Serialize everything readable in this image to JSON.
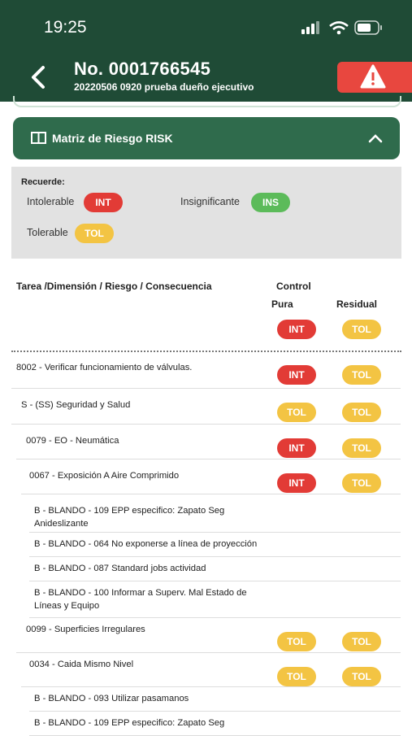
{
  "status_bar": {
    "time": "19:25"
  },
  "header": {
    "title": "No. 0001766545",
    "subtitle": "20220506 0920 prueba dueño ejecutivo"
  },
  "section": {
    "title": "Matriz de Riesgo RISK"
  },
  "legend": {
    "heading": "Recuerde:",
    "items": [
      {
        "label": "Intolerable",
        "badge": "INT",
        "color": "#e23b36"
      },
      {
        "label": "Insignificante",
        "badge": "INS",
        "color": "#5cbb5a"
      },
      {
        "label": "Tolerable",
        "badge": "TOL",
        "color": "#f3c443"
      }
    ]
  },
  "table": {
    "columns": {
      "task": "Tarea /Dimensión / Riesgo / Consecuencia",
      "control": "Control",
      "pura": "Pura",
      "residual": "Residual"
    },
    "summary": {
      "pura": "INT",
      "residual": "TOL"
    },
    "rows": [
      {
        "text": "8002 - Verificar funcionamiento de válvulas.",
        "pura": "INT",
        "residual": "TOL"
      },
      {
        "text": "S - (SS) Seguridad y Salud",
        "pura": "TOL",
        "residual": "TOL"
      },
      {
        "text": "0079 - EO - Neumática",
        "pura": "INT",
        "residual": "TOL"
      },
      {
        "text": "0067 - Exposición A Aire Comprimido",
        "pura": "INT",
        "residual": "TOL"
      },
      {
        "text": "B - BLANDO - 109 EPP especifico: Zapato Seg Anideslizante"
      },
      {
        "text": "B - BLANDO - 064 No exponerse a línea de proyección"
      },
      {
        "text": "B - BLANDO - 087 Standard jobs actividad"
      },
      {
        "text": "B - BLANDO - 100 Informar a Superv. Mal Estado de Líneas y Equipo"
      },
      {
        "text": "0099 - Superficies Irregulares",
        "pura": "TOL",
        "residual": "TOL"
      },
      {
        "text": "0034 - Caida Mismo Nivel",
        "pura": "TOL",
        "residual": "TOL"
      },
      {
        "text": "B - BLANDO - 093 Utilizar pasamanos"
      },
      {
        "text": "B - BLANDO - 109 EPP especifico: Zapato Seg"
      }
    ]
  }
}
